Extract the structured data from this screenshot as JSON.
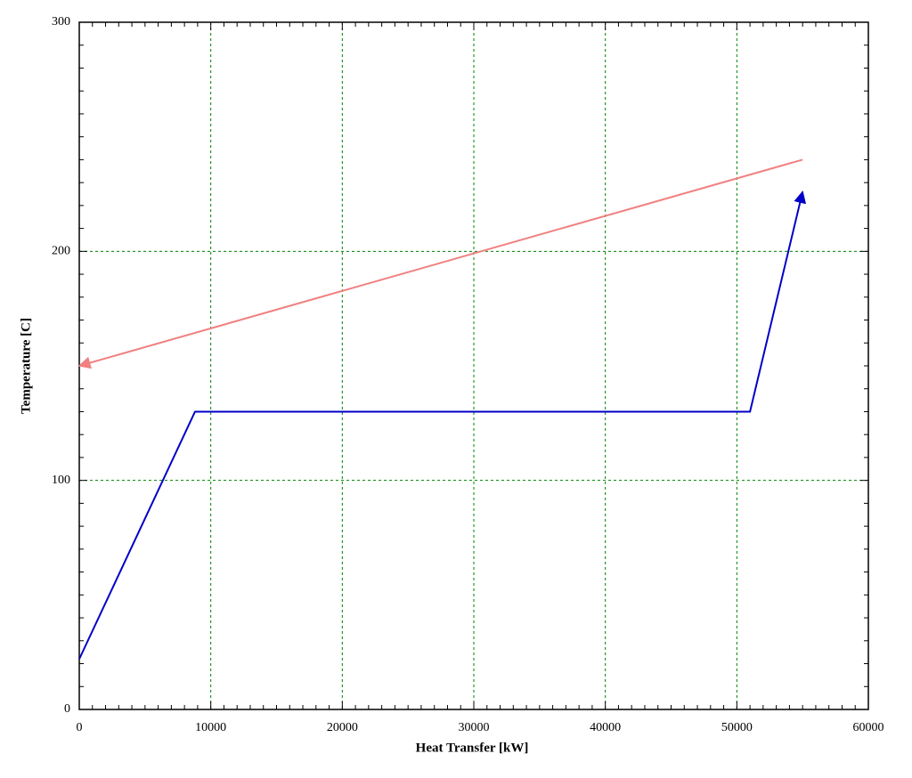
{
  "chart_data": {
    "type": "line",
    "xlabel": "Heat Transfer [kW]",
    "ylabel": "Temperature [C]",
    "xlim": [
      0,
      60000
    ],
    "ylim": [
      0,
      300
    ],
    "xticks": [
      0,
      10000,
      20000,
      30000,
      40000,
      50000,
      60000
    ],
    "yticks": [
      0,
      100,
      200,
      300
    ],
    "grid": true,
    "series": [
      {
        "color": "#f08080",
        "x": [
          55000,
          0
        ],
        "values": [
          240,
          150
        ],
        "arrow": "end"
      },
      {
        "color": "#0000c8",
        "x": [
          0,
          8800,
          51000,
          55000
        ],
        "values": [
          22,
          130,
          130,
          226
        ],
        "arrow": "end"
      }
    ]
  }
}
